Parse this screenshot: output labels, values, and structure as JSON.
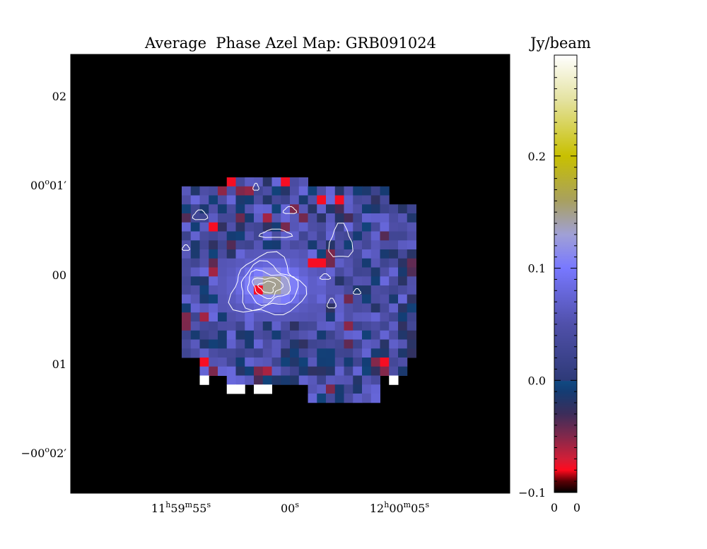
{
  "chart_data": {
    "type": "heatmap",
    "title": "Average  Phase Azel Map: GRB091024",
    "colorbar": {
      "label": "Jy/beam",
      "range": [
        -0.1,
        0.29
      ],
      "tick_labels": [
        {
          "value": -0.1,
          "text": "−0.1"
        },
        {
          "value": 0.0,
          "text": "0.0"
        },
        {
          "value": 0.1,
          "text": "0.1"
        },
        {
          "value": 0.2,
          "text": "0.2"
        }
      ],
      "bottom_labels": [
        "0",
        "0"
      ],
      "colormap": [
        {
          "v": -0.1,
          "c": "#000000"
        },
        {
          "v": -0.09,
          "c": "#5a0005"
        },
        {
          "v": -0.08,
          "c": "#ff0a1e"
        },
        {
          "v": -0.07,
          "c": "#d21e37"
        },
        {
          "v": -0.05,
          "c": "#82284b"
        },
        {
          "v": -0.03,
          "c": "#3c2d5a"
        },
        {
          "v": -0.01,
          "c": "#143c73"
        },
        {
          "v": -0.001,
          "c": "#104a82"
        },
        {
          "v": 0.0,
          "c": "#2e3a78"
        },
        {
          "v": 0.05,
          "c": "#5050aa"
        },
        {
          "v": 0.1,
          "c": "#7878ff"
        },
        {
          "v": 0.13,
          "c": "#a0a0d6"
        },
        {
          "v": 0.16,
          "c": "#a8a060"
        },
        {
          "v": 0.2,
          "c": "#c8c000"
        },
        {
          "v": 0.25,
          "c": "#e4e2a0"
        },
        {
          "v": 0.29,
          "c": "#ffffff"
        }
      ]
    },
    "x_axis": {
      "type": "right_ascension",
      "ticks": [
        {
          "h": "11",
          "m": "59",
          "s": "55"
        },
        {
          "s": "00"
        },
        {
          "h": "12",
          "m": "00",
          "s": "05"
        }
      ]
    },
    "y_axis": {
      "type": "declination",
      "ticks": [
        {
          "text": "02"
        },
        {
          "deg": "00",
          "min": "01"
        },
        {
          "text": "00"
        },
        {
          "text": "01"
        },
        {
          "deg": "−00",
          "min": "02"
        }
      ]
    },
    "grid": false,
    "map_grid": {
      "cols": 26,
      "rows": 25,
      "min_value": -0.1,
      "max_value": 0.16
    }
  }
}
